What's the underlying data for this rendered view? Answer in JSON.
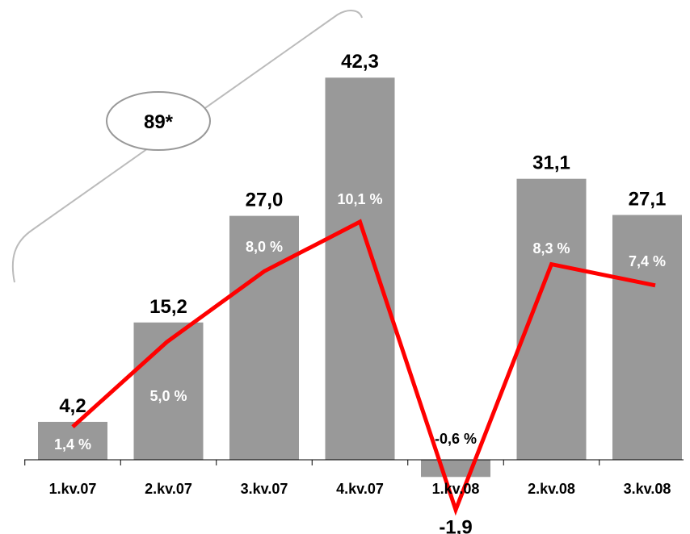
{
  "chart_data": {
    "type": "bar",
    "categories": [
      "1.kv.07",
      "2.kv.07",
      "3.kv.07",
      "4.kv.07",
      "1.kv.08",
      "2.kv.08",
      "3.kv.08"
    ],
    "values": [
      4.2,
      15.2,
      27.0,
      42.3,
      -1.9,
      31.1,
      27.1
    ],
    "value_labels": [
      "4,2",
      "15,2",
      "27,0",
      "42,3",
      "-1,9",
      "31,1",
      "27,1"
    ],
    "line_series": {
      "values": [
        1.4,
        5.0,
        8.0,
        10.1,
        -0.6,
        8.3,
        7.4
      ],
      "labels": [
        "1,4 %",
        "5,0 %",
        "8,0 %",
        "10,1 %",
        "-0,6 %",
        "8,3 %",
        "7,4 %"
      ],
      "color": "#ff0000",
      "yrange": [
        0,
        11
      ]
    },
    "ylim": [
      -2,
      50
    ],
    "bar_color": "#999999",
    "annotation": {
      "text": "89*"
    },
    "grid": false,
    "legend": "none"
  }
}
